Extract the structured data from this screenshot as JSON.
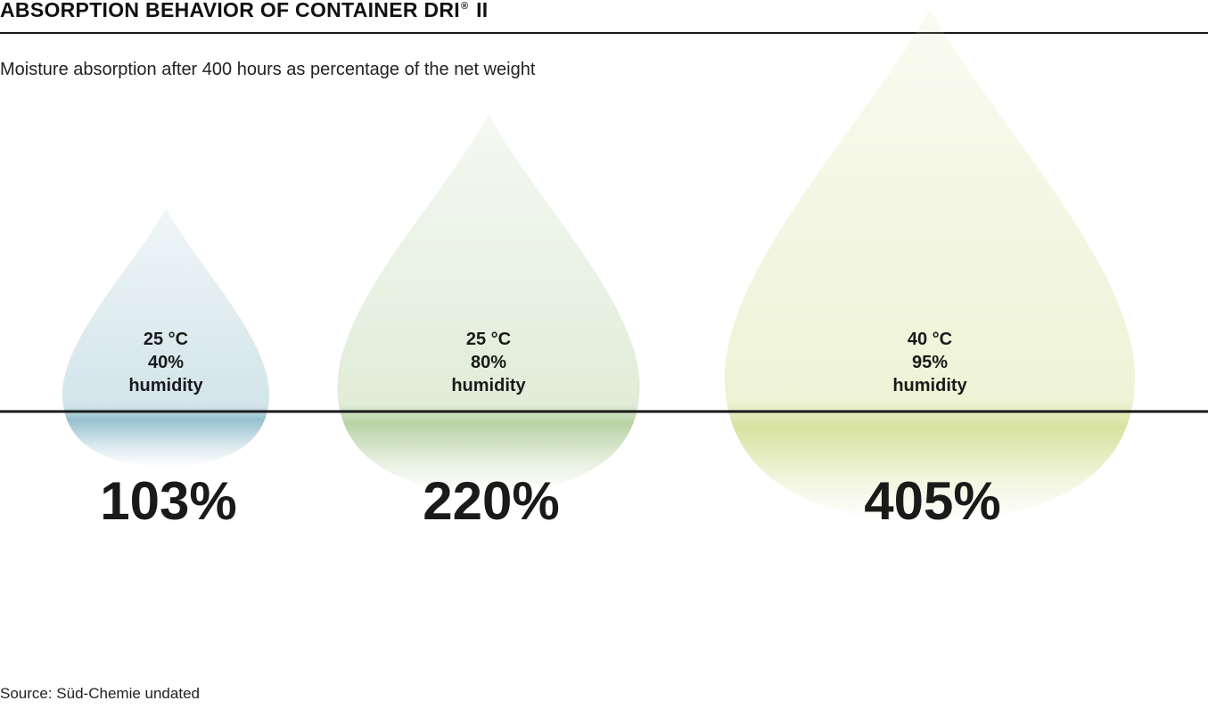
{
  "header": {
    "title_main": "ABSORPTION BEHAVIOR OF CONTAINER DRI",
    "title_sup": "®",
    "title_end": "II",
    "subtitle": "Moisture absorption after 400 hours as percentage of the net weight"
  },
  "footer": {
    "source": "Source: Süd-Chemie undated"
  },
  "colors": {
    "drop_1": "#7fb3c4",
    "drop_2": "#a8c990",
    "drop_3": "#cfdc8a",
    "rule": "#1a1a1a"
  },
  "chart_data": {
    "type": "bar",
    "title": "ABSORPTION BEHAVIOR OF CONTAINER DRI® II",
    "subtitle": "Moisture absorption after 400 hours as percentage of the net weight",
    "unit": "%",
    "categories": [
      {
        "temp": "25 °C",
        "humidity": "40%",
        "humidity_label": "humidity",
        "value": 103,
        "label": "103%"
      },
      {
        "temp": "25 °C",
        "humidity": "80%",
        "humidity_label": "humidity",
        "value": 220,
        "label": "220%"
      },
      {
        "temp": "40 °C",
        "humidity": "95%",
        "humidity_label": "humidity",
        "value": 405,
        "label": "405%"
      }
    ],
    "grid": false,
    "legend": "none"
  }
}
